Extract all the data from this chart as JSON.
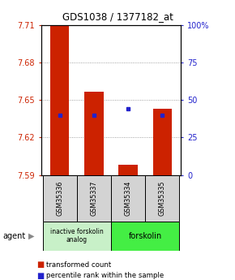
{
  "title": "GDS1038 / 1377182_at",
  "samples": [
    "GSM35336",
    "GSM35337",
    "GSM35334",
    "GSM35335"
  ],
  "bar_values": [
    7.71,
    7.657,
    7.598,
    7.643
  ],
  "bar_base": 7.59,
  "percentile_values": [
    40,
    40,
    44,
    40
  ],
  "percentile_scale_min": 0,
  "percentile_scale_max": 100,
  "ylim": [
    7.59,
    7.71
  ],
  "yticks": [
    7.59,
    7.62,
    7.65,
    7.68,
    7.71
  ],
  "right_yticks": [
    0,
    25,
    50,
    75,
    100
  ],
  "bar_color": "#cc2200",
  "percentile_color": "#2222cc",
  "group1_label": "inactive forskolin\nanalog",
  "group2_label": "forskolin",
  "group1_color": "#c8f0c8",
  "group2_color": "#44ee44",
  "legend_red_label": "transformed count",
  "legend_blue_label": "percentile rank within the sample",
  "agent_label": "agent",
  "grid_color": "#888888",
  "bg_color": "#ffffff"
}
